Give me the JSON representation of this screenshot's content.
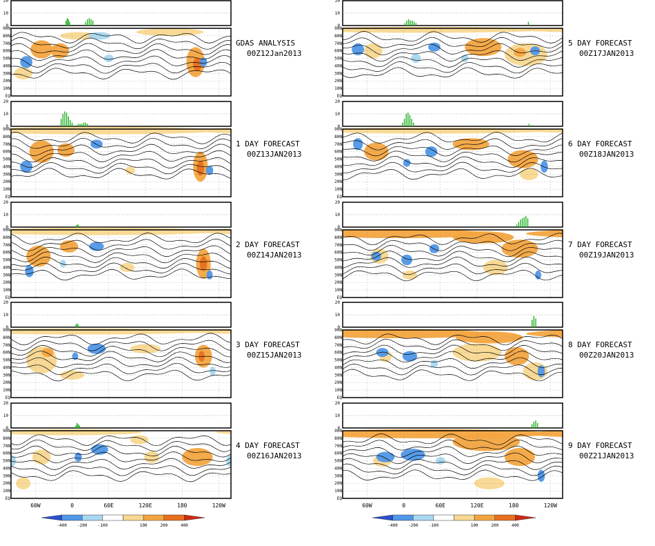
{
  "lat_ticks": [
    "90N",
    "80N",
    "70N",
    "60N",
    "50N",
    "40N",
    "30N",
    "20N",
    "10N",
    "EQ"
  ],
  "lon_ticks": [
    "60W",
    "0",
    "60E",
    "120E",
    "180",
    "120W"
  ],
  "histogram_y_ticks": [
    "20",
    "10",
    "0"
  ],
  "colorbar": {
    "labels": [
      "-400",
      "-200",
      "-100",
      "100",
      "200",
      "400"
    ],
    "colors": [
      "#2a4fd0",
      "#4f97e8",
      "#a9d8f0",
      "#ffffff",
      "#f8d890",
      "#f4a540",
      "#e8701e",
      "#d02a10"
    ]
  },
  "panels": [
    {
      "title": "GDAS ANALYSIS",
      "time": "00Z12Jan2013",
      "bars": [
        {
          "x": -10,
          "v": 4
        },
        {
          "x": -8,
          "v": 6
        },
        {
          "x": -6,
          "v": 5
        },
        {
          "x": -4,
          "v": 3
        },
        {
          "x": 22,
          "v": 3
        },
        {
          "x": 25,
          "v": 5
        },
        {
          "x": 28,
          "v": 6
        },
        {
          "x": 31,
          "v": 5
        },
        {
          "x": 34,
          "v": 4
        }
      ],
      "pos": [
        {
          "lon": -50,
          "lat": 62,
          "rx": 18,
          "ry": 12,
          "a": 2
        },
        {
          "lon": -20,
          "lat": 60,
          "rx": 15,
          "ry": 10,
          "a": 2
        },
        {
          "lon": 10,
          "lat": 80,
          "rx": 30,
          "ry": 5,
          "a": 1
        },
        {
          "lon": 160,
          "lat": 85,
          "rx": 55,
          "ry": 5,
          "a": 1
        },
        {
          "lon": -158,
          "lat": 45,
          "rx": 15,
          "ry": 20,
          "a": 2
        },
        {
          "lon": -155,
          "lat": 42,
          "rx": 7,
          "ry": 9,
          "a": 3
        },
        {
          "lon": -80,
          "lat": 30,
          "rx": 15,
          "ry": 8,
          "a": 1
        }
      ],
      "neg": [
        {
          "lon": -75,
          "lat": 45,
          "rx": 10,
          "ry": 8,
          "a": 2
        },
        {
          "lon": 45,
          "lat": 80,
          "rx": 18,
          "ry": 5,
          "a": 1
        },
        {
          "lon": -145,
          "lat": 45,
          "rx": 6,
          "ry": 6,
          "a": 2
        },
        {
          "lon": 60,
          "lat": 50,
          "rx": 8,
          "ry": 5,
          "a": 1
        }
      ]
    },
    {
      "title": "1 DAY FORECAST",
      "time": "00Z13JAN2013",
      "bars": [
        {
          "x": -18,
          "v": 6
        },
        {
          "x": -15,
          "v": 10
        },
        {
          "x": -12,
          "v": 12
        },
        {
          "x": -9,
          "v": 11
        },
        {
          "x": -6,
          "v": 8
        },
        {
          "x": -3,
          "v": 5
        },
        {
          "x": 0,
          "v": 3
        },
        {
          "x": 10,
          "v": 2
        },
        {
          "x": 13,
          "v": 2
        },
        {
          "x": 16,
          "v": 2
        },
        {
          "x": 19,
          "v": 3
        },
        {
          "x": 22,
          "v": 3
        },
        {
          "x": 25,
          "v": 2
        }
      ],
      "pos": [
        {
          "lon": 40,
          "lat": 88,
          "rx": 200,
          "ry": 5,
          "a": 1
        },
        {
          "lon": -50,
          "lat": 60,
          "rx": 20,
          "ry": 15,
          "a": 2
        },
        {
          "lon": -10,
          "lat": 62,
          "rx": 14,
          "ry": 9,
          "a": 2
        },
        {
          "lon": -150,
          "lat": 40,
          "rx": 12,
          "ry": 20,
          "a": 2
        },
        {
          "lon": -150,
          "lat": 38,
          "rx": 6,
          "ry": 10,
          "a": 3
        },
        {
          "lon": 95,
          "lat": 35,
          "rx": 8,
          "ry": 5,
          "a": 1
        }
      ],
      "neg": [
        {
          "lon": -75,
          "lat": 40,
          "rx": 10,
          "ry": 8,
          "a": 2
        },
        {
          "lon": 40,
          "lat": 70,
          "rx": 10,
          "ry": 6,
          "a": 2
        },
        {
          "lon": -135,
          "lat": 35,
          "rx": 6,
          "ry": 6,
          "a": 2
        }
      ]
    },
    {
      "title": "2 DAY FORECAST",
      "time": "00Z14JAN2013",
      "bars": [
        {
          "x": 6,
          "v": 1
        },
        {
          "x": 8,
          "v": 2
        },
        {
          "x": 10,
          "v": 2
        }
      ],
      "pos": [
        {
          "lon": 40,
          "lat": 88,
          "rx": 200,
          "ry": 5,
          "a": 1
        },
        {
          "lon": -55,
          "lat": 55,
          "rx": 20,
          "ry": 14,
          "a": 2
        },
        {
          "lon": -5,
          "lat": 68,
          "rx": 15,
          "ry": 8,
          "a": 2
        },
        {
          "lon": -145,
          "lat": 45,
          "rx": 12,
          "ry": 20,
          "a": 2
        },
        {
          "lon": -145,
          "lat": 45,
          "rx": 6,
          "ry": 10,
          "a": 3
        },
        {
          "lon": 90,
          "lat": 40,
          "rx": 12,
          "ry": 6,
          "a": 1
        }
      ],
      "neg": [
        {
          "lon": -70,
          "lat": 35,
          "rx": 7,
          "ry": 8,
          "a": 2
        },
        {
          "lon": 40,
          "lat": 68,
          "rx": 12,
          "ry": 6,
          "a": 2
        },
        {
          "lon": -135,
          "lat": 30,
          "rx": 5,
          "ry": 6,
          "a": 2
        },
        {
          "lon": -15,
          "lat": 45,
          "rx": 5,
          "ry": 5,
          "a": 1
        }
      ]
    },
    {
      "title": "3 DAY FORECAST",
      "time": "00Z15JAN2013",
      "bars": [
        {
          "x": 6,
          "v": 2
        },
        {
          "x": 8,
          "v": 3
        },
        {
          "x": 10,
          "v": 2
        }
      ],
      "pos": [
        {
          "lon": 20,
          "lat": 88,
          "rx": 200,
          "ry": 4,
          "a": 1
        },
        {
          "lon": -50,
          "lat": 50,
          "rx": 25,
          "ry": 18,
          "a": 1
        },
        {
          "lon": -40,
          "lat": 60,
          "rx": 10,
          "ry": 6,
          "a": 2
        },
        {
          "lon": -145,
          "lat": 55,
          "rx": 14,
          "ry": 15,
          "a": 2
        },
        {
          "lon": -148,
          "lat": 55,
          "rx": 5,
          "ry": 7,
          "a": 3
        },
        {
          "lon": 120,
          "lat": 65,
          "rx": 25,
          "ry": 6,
          "a": 1
        },
        {
          "lon": 0,
          "lat": 30,
          "rx": 20,
          "ry": 6,
          "a": 1
        }
      ],
      "neg": [
        {
          "lon": 40,
          "lat": 65,
          "rx": 15,
          "ry": 7,
          "a": 2
        },
        {
          "lon": 5,
          "lat": 55,
          "rx": 5,
          "ry": 5,
          "a": 2
        },
        {
          "lon": -130,
          "lat": 35,
          "rx": 5,
          "ry": 6,
          "a": 1
        }
      ]
    },
    {
      "title": "4 DAY FORECAST",
      "time": "00Z16JAN2013",
      "bars": [
        {
          "x": 6,
          "v": 2
        },
        {
          "x": 8,
          "v": 4
        },
        {
          "x": 10,
          "v": 3
        },
        {
          "x": 12,
          "v": 2
        }
      ],
      "pos": [
        {
          "lon": -5,
          "lat": 88,
          "rx": 120,
          "ry": 4,
          "a": 1
        },
        {
          "lon": 110,
          "lat": 78,
          "rx": 15,
          "ry": 6,
          "a": 1
        },
        {
          "lon": -155,
          "lat": 55,
          "rx": 25,
          "ry": 12,
          "a": 2
        },
        {
          "lon": -50,
          "lat": 55,
          "rx": 15,
          "ry": 10,
          "a": 1
        },
        {
          "lon": -80,
          "lat": 20,
          "rx": 12,
          "ry": 8,
          "a": 1
        },
        {
          "lon": 130,
          "lat": 55,
          "rx": 12,
          "ry": 8,
          "a": 1
        }
      ],
      "neg": [
        {
          "lon": 45,
          "lat": 65,
          "rx": 14,
          "ry": 7,
          "a": 2
        },
        {
          "lon": 10,
          "lat": 55,
          "rx": 6,
          "ry": 6,
          "a": 2
        },
        {
          "lon": -100,
          "lat": 50,
          "rx": 8,
          "ry": 8,
          "a": 1
        }
      ]
    },
    {
      "title": "5 DAY FORECAST",
      "time": "00Z17JAN2013",
      "bars": [
        {
          "x": 2,
          "v": 2
        },
        {
          "x": 5,
          "v": 4
        },
        {
          "x": 8,
          "v": 5
        },
        {
          "x": 11,
          "v": 4
        },
        {
          "x": 14,
          "v": 4
        },
        {
          "x": 17,
          "v": 3
        },
        {
          "x": 20,
          "v": 2
        },
        {
          "x": -156,
          "v": 3
        }
      ],
      "pos": [
        {
          "lon": 30,
          "lat": 88,
          "rx": 200,
          "ry": 4,
          "a": 1
        },
        {
          "lon": -50,
          "lat": 60,
          "rx": 15,
          "ry": 10,
          "a": 1
        },
        {
          "lon": 130,
          "lat": 65,
          "rx": 30,
          "ry": 12,
          "a": 2
        },
        {
          "lon": -160,
          "lat": 55,
          "rx": 35,
          "ry": 15,
          "a": 1
        },
        {
          "lon": -170,
          "lat": 58,
          "rx": 10,
          "ry": 6,
          "a": 2
        }
      ],
      "neg": [
        {
          "lon": -75,
          "lat": 62,
          "rx": 10,
          "ry": 8,
          "a": 2
        },
        {
          "lon": 50,
          "lat": 65,
          "rx": 10,
          "ry": 6,
          "a": 2
        },
        {
          "lon": 20,
          "lat": 50,
          "rx": 8,
          "ry": 6,
          "a": 1
        },
        {
          "lon": -145,
          "lat": 60,
          "rx": 8,
          "ry": 6,
          "a": 2
        },
        {
          "lon": 100,
          "lat": 50,
          "rx": 6,
          "ry": 5,
          "a": 1
        }
      ]
    },
    {
      "title": "6 DAY FORECAST",
      "time": "00Z18JAN2013",
      "bars": [
        {
          "x": -2,
          "v": 3
        },
        {
          "x": 1,
          "v": 6
        },
        {
          "x": 4,
          "v": 10
        },
        {
          "x": 7,
          "v": 11
        },
        {
          "x": 10,
          "v": 9
        },
        {
          "x": 13,
          "v": 6
        },
        {
          "x": 16,
          "v": 3
        },
        {
          "x": -155,
          "v": 2
        },
        {
          "x": -150,
          "v": 1
        }
      ],
      "pos": [
        {
          "lon": 40,
          "lat": 88,
          "rx": 200,
          "ry": 4,
          "a": 1
        },
        {
          "lon": -45,
          "lat": 60,
          "rx": 20,
          "ry": 12,
          "a": 2
        },
        {
          "lon": 110,
          "lat": 70,
          "rx": 30,
          "ry": 8,
          "a": 2
        },
        {
          "lon": -165,
          "lat": 50,
          "rx": 25,
          "ry": 12,
          "a": 2
        },
        {
          "lon": -155,
          "lat": 30,
          "rx": 15,
          "ry": 8,
          "a": 1
        }
      ],
      "neg": [
        {
          "lon": -75,
          "lat": 70,
          "rx": 8,
          "ry": 8,
          "a": 2
        },
        {
          "lon": 45,
          "lat": 60,
          "rx": 10,
          "ry": 7,
          "a": 2
        },
        {
          "lon": 5,
          "lat": 45,
          "rx": 6,
          "ry": 5,
          "a": 2
        },
        {
          "lon": -130,
          "lat": 40,
          "rx": 6,
          "ry": 8,
          "a": 2
        }
      ]
    },
    {
      "title": "7 DAY FORECAST",
      "time": "00Z19JAN2013",
      "bars": [
        {
          "x": -175,
          "v": 2
        },
        {
          "x": -172,
          "v": 4
        },
        {
          "x": -169,
          "v": 6
        },
        {
          "x": -166,
          "v": 7
        },
        {
          "x": -163,
          "v": 8
        },
        {
          "x": -160,
          "v": 9
        },
        {
          "x": -157,
          "v": 7
        }
      ],
      "pos": [
        {
          "lon": -10,
          "lat": 85,
          "rx": 150,
          "ry": 6,
          "a": 2
        },
        {
          "lon": 130,
          "lat": 80,
          "rx": 50,
          "ry": 8,
          "a": 2
        },
        {
          "lon": -170,
          "lat": 65,
          "rx": 30,
          "ry": 12,
          "a": 2
        },
        {
          "lon": -40,
          "lat": 55,
          "rx": 15,
          "ry": 10,
          "a": 1
        },
        {
          "lon": 150,
          "lat": 40,
          "rx": 20,
          "ry": 10,
          "a": 1
        },
        {
          "lon": 10,
          "lat": 30,
          "rx": 12,
          "ry": 6,
          "a": 1
        }
      ],
      "neg": [
        {
          "lon": -45,
          "lat": 55,
          "rx": 8,
          "ry": 6,
          "a": 2
        },
        {
          "lon": 5,
          "lat": 50,
          "rx": 9,
          "ry": 7,
          "a": 2
        },
        {
          "lon": 50,
          "lat": 65,
          "rx": 8,
          "ry": 6,
          "a": 2
        },
        {
          "lon": -140,
          "lat": 30,
          "rx": 5,
          "ry": 6,
          "a": 2
        }
      ]
    },
    {
      "title": "8 DAY FORECAST",
      "time": "00Z20JAN2013",
      "bars": [
        {
          "x": -150,
          "v": 6
        },
        {
          "x": -147,
          "v": 9
        },
        {
          "x": -144,
          "v": 7
        }
      ],
      "pos": [
        {
          "lon": -10,
          "lat": 85,
          "rx": 150,
          "ry": 6,
          "a": 2
        },
        {
          "lon": 140,
          "lat": 80,
          "rx": 55,
          "ry": 8,
          "a": 2
        },
        {
          "lon": 120,
          "lat": 60,
          "rx": 40,
          "ry": 12,
          "a": 1
        },
        {
          "lon": -175,
          "lat": 55,
          "rx": 20,
          "ry": 12,
          "a": 2
        },
        {
          "lon": -145,
          "lat": 35,
          "rx": 20,
          "ry": 12,
          "a": 1
        },
        {
          "lon": -30,
          "lat": 55,
          "rx": 10,
          "ry": 8,
          "a": 1
        }
      ],
      "neg": [
        {
          "lon": -35,
          "lat": 60,
          "rx": 10,
          "ry": 6,
          "a": 2
        },
        {
          "lon": 10,
          "lat": 55,
          "rx": 12,
          "ry": 7,
          "a": 2
        },
        {
          "lon": -135,
          "lat": 35,
          "rx": 6,
          "ry": 8,
          "a": 2
        },
        {
          "lon": 50,
          "lat": 45,
          "rx": 6,
          "ry": 5,
          "a": 1
        }
      ]
    },
    {
      "title": "9 DAY FORECAST",
      "time": "00Z21JAN2013",
      "bars": [
        {
          "x": -150,
          "v": 3
        },
        {
          "x": -147,
          "v": 5
        },
        {
          "x": -144,
          "v": 6
        },
        {
          "x": -141,
          "v": 4
        }
      ],
      "pos": [
        {
          "lon": 40,
          "lat": 86,
          "rx": 200,
          "ry": 6,
          "a": 2
        },
        {
          "lon": 135,
          "lat": 75,
          "rx": 55,
          "ry": 12,
          "a": 2
        },
        {
          "lon": -170,
          "lat": 55,
          "rx": 25,
          "ry": 12,
          "a": 2
        },
        {
          "lon": -35,
          "lat": 50,
          "rx": 15,
          "ry": 8,
          "a": 1
        },
        {
          "lon": 140,
          "lat": 20,
          "rx": 25,
          "ry": 8,
          "a": 1
        }
      ],
      "neg": [
        {
          "lon": -30,
          "lat": 55,
          "rx": 15,
          "ry": 7,
          "a": 2
        },
        {
          "lon": 15,
          "lat": 58,
          "rx": 20,
          "ry": 8,
          "a": 2
        },
        {
          "lon": -135,
          "lat": 30,
          "rx": 6,
          "ry": 8,
          "a": 2
        },
        {
          "lon": 60,
          "lat": 50,
          "rx": 8,
          "ry": 5,
          "a": 1
        }
      ]
    }
  ]
}
